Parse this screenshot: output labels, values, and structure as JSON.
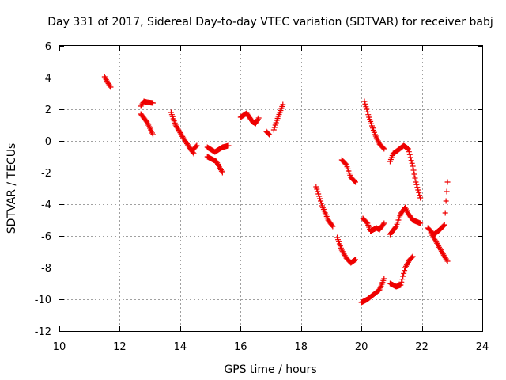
{
  "chart_data": {
    "type": "scatter",
    "title": "Day 331 of 2017, Sidereal Day-to-day VTEC variation (SDTVAR) for receiver babj",
    "xlabel": "GPS time / hours",
    "ylabel": "SDTVAR / TECUs",
    "xlim": [
      10,
      24
    ],
    "ylim": [
      -12,
      6
    ],
    "xticks": [
      "10",
      "12",
      "14",
      "16",
      "18",
      "20",
      "22",
      "24"
    ],
    "yticks": [
      "6",
      "4",
      "2",
      "0",
      "-2",
      "-4",
      "-6",
      "-8",
      "-10",
      "-12"
    ],
    "grid": true,
    "marker": "plus",
    "color": "#ee0000",
    "arcs": [
      [
        [
          11.5,
          4.05
        ],
        [
          11.6,
          3.7
        ],
        [
          11.7,
          3.4
        ]
      ],
      [
        [
          12.7,
          2.2
        ],
        [
          12.8,
          2.5
        ],
        [
          12.9,
          2.45
        ],
        [
          13.1,
          2.4
        ]
      ],
      [
        [
          12.7,
          1.7
        ],
        [
          12.9,
          1.2
        ],
        [
          13.1,
          0.4
        ]
      ],
      [
        [
          13.7,
          1.8
        ],
        [
          13.85,
          1.0
        ],
        [
          14.1,
          0.2
        ],
        [
          14.3,
          -0.4
        ],
        [
          14.45,
          -0.8
        ]
      ],
      [
        [
          14.4,
          -0.6
        ],
        [
          14.55,
          -0.3
        ]
      ],
      [
        [
          14.9,
          -0.4
        ],
        [
          15.15,
          -0.7
        ],
        [
          15.4,
          -0.4
        ],
        [
          15.6,
          -0.3
        ]
      ],
      [
        [
          14.9,
          -1.0
        ],
        [
          15.2,
          -1.3
        ],
        [
          15.4,
          -2.0
        ]
      ],
      [
        [
          16.0,
          1.5
        ],
        [
          16.2,
          1.75
        ],
        [
          16.4,
          1.2
        ],
        [
          16.5,
          1.1
        ],
        [
          16.6,
          1.45
        ]
      ],
      [
        [
          16.85,
          0.6
        ],
        [
          16.95,
          0.4
        ]
      ],
      [
        [
          17.1,
          0.7
        ],
        [
          17.2,
          1.3
        ],
        [
          17.4,
          2.3
        ]
      ],
      [
        [
          18.5,
          -2.9
        ],
        [
          18.7,
          -4.1
        ],
        [
          18.9,
          -5.0
        ],
        [
          19.05,
          -5.4
        ]
      ],
      [
        [
          19.2,
          -6.1
        ],
        [
          19.35,
          -6.9
        ],
        [
          19.5,
          -7.4
        ],
        [
          19.65,
          -7.7
        ],
        [
          19.8,
          -7.5
        ]
      ],
      [
        [
          19.35,
          -1.2
        ],
        [
          19.5,
          -1.5
        ],
        [
          19.65,
          -2.3
        ],
        [
          19.8,
          -2.6
        ]
      ],
      [
        [
          20.1,
          2.5
        ],
        [
          20.25,
          1.5
        ],
        [
          20.45,
          0.4
        ],
        [
          20.6,
          -0.2
        ],
        [
          20.75,
          -0.5
        ]
      ],
      [
        [
          20.0,
          -10.2
        ],
        [
          20.2,
          -10.0
        ],
        [
          20.4,
          -9.7
        ],
        [
          20.6,
          -9.4
        ],
        [
          20.75,
          -8.7
        ]
      ],
      [
        [
          20.05,
          -4.9
        ],
        [
          20.2,
          -5.2
        ],
        [
          20.3,
          -5.7
        ],
        [
          20.5,
          -5.5
        ],
        [
          20.6,
          -5.6
        ],
        [
          20.75,
          -5.2
        ]
      ],
      [
        [
          20.95,
          -1.3
        ],
        [
          21.05,
          -0.8
        ],
        [
          21.2,
          -0.6
        ],
        [
          21.4,
          -0.3
        ],
        [
          21.55,
          -0.5
        ],
        [
          21.7,
          -1.6
        ],
        [
          21.8,
          -2.6
        ],
        [
          21.95,
          -3.6
        ]
      ],
      [
        [
          20.95,
          -9.0
        ],
        [
          21.15,
          -9.2
        ],
        [
          21.3,
          -9.1
        ],
        [
          21.45,
          -8.0
        ],
        [
          21.6,
          -7.5
        ],
        [
          21.7,
          -7.3
        ]
      ],
      [
        [
          20.95,
          -5.9
        ],
        [
          21.15,
          -5.4
        ],
        [
          21.3,
          -4.6
        ],
        [
          21.45,
          -4.2
        ],
        [
          21.55,
          -4.6
        ],
        [
          21.7,
          -5.0
        ],
        [
          21.95,
          -5.2
        ]
      ],
      [
        [
          22.2,
          -5.5
        ],
        [
          22.4,
          -5.9
        ],
        [
          22.6,
          -5.6
        ],
        [
          22.75,
          -5.3
        ],
        [
          22.8,
          -3.8
        ],
        [
          22.85,
          -2.6
        ]
      ],
      [
        [
          22.3,
          -5.8
        ],
        [
          22.45,
          -6.3
        ],
        [
          22.6,
          -6.8
        ],
        [
          22.75,
          -7.3
        ],
        [
          22.85,
          -7.6
        ]
      ]
    ]
  }
}
